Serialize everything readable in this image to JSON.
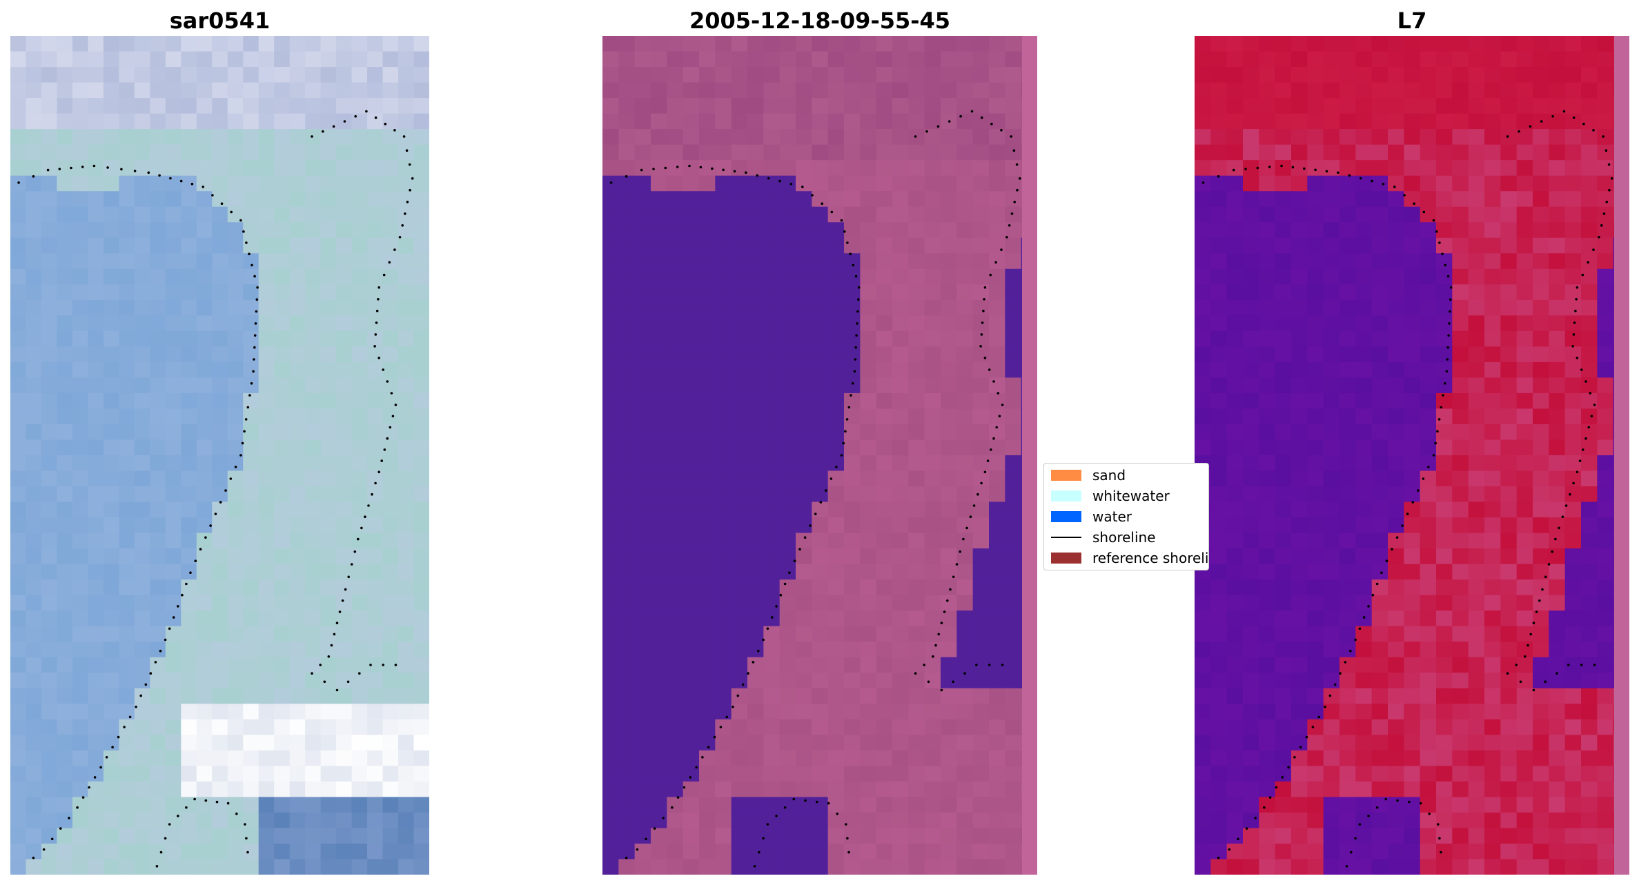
{
  "panels": [
    {
      "title": "sar0541",
      "palette": "rgb"
    },
    {
      "title": "2005-12-18-09-55-45",
      "palette": "classified"
    },
    {
      "title": "L7",
      "palette": "index"
    }
  ],
  "legend": {
    "items": [
      {
        "label": "sand",
        "color": "#ff8c42",
        "kind": "patch"
      },
      {
        "label": "whitewater",
        "color": "#c8ffff",
        "kind": "patch"
      },
      {
        "label": "water",
        "color": "#0064ff",
        "kind": "patch"
      },
      {
        "label": "shoreline",
        "color": "#000000",
        "kind": "line"
      },
      {
        "label": "reference shoreline",
        "color": "#9a3030",
        "kind": "patch"
      }
    ]
  },
  "colors": {
    "classified_water": "#52219a",
    "classified_land": "#b45a8e",
    "index_low": "#5a0fa0",
    "index_high": "#c4103c",
    "rgb_water": "#7fa8d8",
    "rgb_land": "#a8d0d0"
  }
}
